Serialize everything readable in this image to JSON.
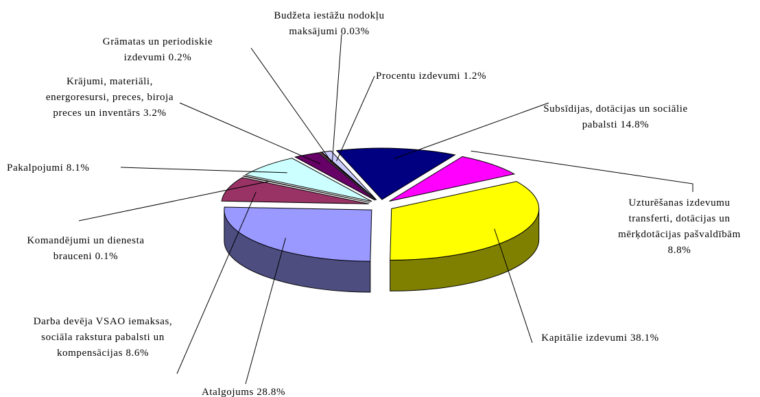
{
  "chart_data": {
    "type": "pie",
    "categories": [
      "Kapitālie izdevumi",
      "Atalgojums",
      "Darba devēja VSAO iemaksas, sociāla rakstura pabalsti un kompensācijas",
      "Komandējumi un dienesta brauceni",
      "Pakalpojumi",
      "Krājumi, materiāli, energoresursi, preces, biroja preces un inventārs",
      "Grāmatas un periodiskie izdevumi",
      "Budžeta iestāžu nodokļu maksājumi",
      "Procentu izdevumi",
      "Subsīdijas, dotācijas un sociālie pabalsti",
      "Uzturēšanas izdevumu transferti, dotācijas un mērķdotācijas pašvaldībām"
    ],
    "values": [
      38.1,
      28.8,
      8.6,
      0.1,
      8.1,
      3.2,
      0.2,
      0.03,
      1.2,
      14.8,
      8.8
    ],
    "value_labels": [
      "38.1%",
      "28.8%",
      "8.6%",
      "0.1%",
      "8.1%",
      "3.2%",
      "0.2%",
      "0.03%",
      "1.2%",
      "14.8%",
      "8.8%"
    ],
    "colors": [
      "#ffff00",
      "#9999ff",
      "#993366",
      "#8fa89a",
      "#ccffff",
      "#660066",
      "#ff8080",
      "#0066cc",
      "#ccccff",
      "#000080",
      "#ff00ff"
    ]
  }
}
